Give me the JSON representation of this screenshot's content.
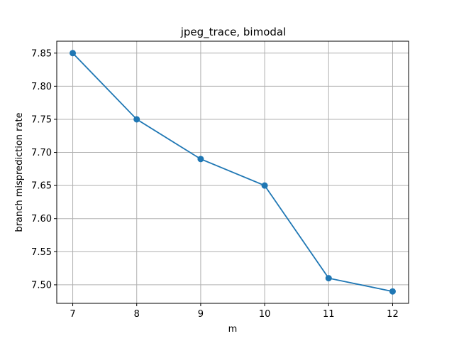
{
  "chart_data": {
    "type": "line",
    "title": "jpeg_trace, bimodal",
    "xlabel": "m",
    "ylabel": "branch misprediction rate",
    "x": [
      7,
      8,
      9,
      10,
      11,
      12
    ],
    "series": [
      {
        "values": [
          7.85,
          7.75,
          7.69,
          7.65,
          7.51,
          7.49
        ],
        "color": "#1f77b4"
      }
    ],
    "xticks": [
      7,
      8,
      9,
      10,
      11,
      12
    ],
    "xtick_labels": [
      "7",
      "8",
      "9",
      "10",
      "11",
      "12"
    ],
    "yticks": [
      7.5,
      7.55,
      7.6,
      7.65,
      7.7,
      7.75,
      7.8,
      7.85
    ],
    "ytick_labels": [
      "7.50",
      "7.55",
      "7.60",
      "7.65",
      "7.70",
      "7.75",
      "7.80",
      "7.85"
    ],
    "xlim": [
      6.75,
      12.25
    ],
    "ylim": [
      7.472,
      7.868
    ],
    "grid": true,
    "marker": "circle"
  }
}
